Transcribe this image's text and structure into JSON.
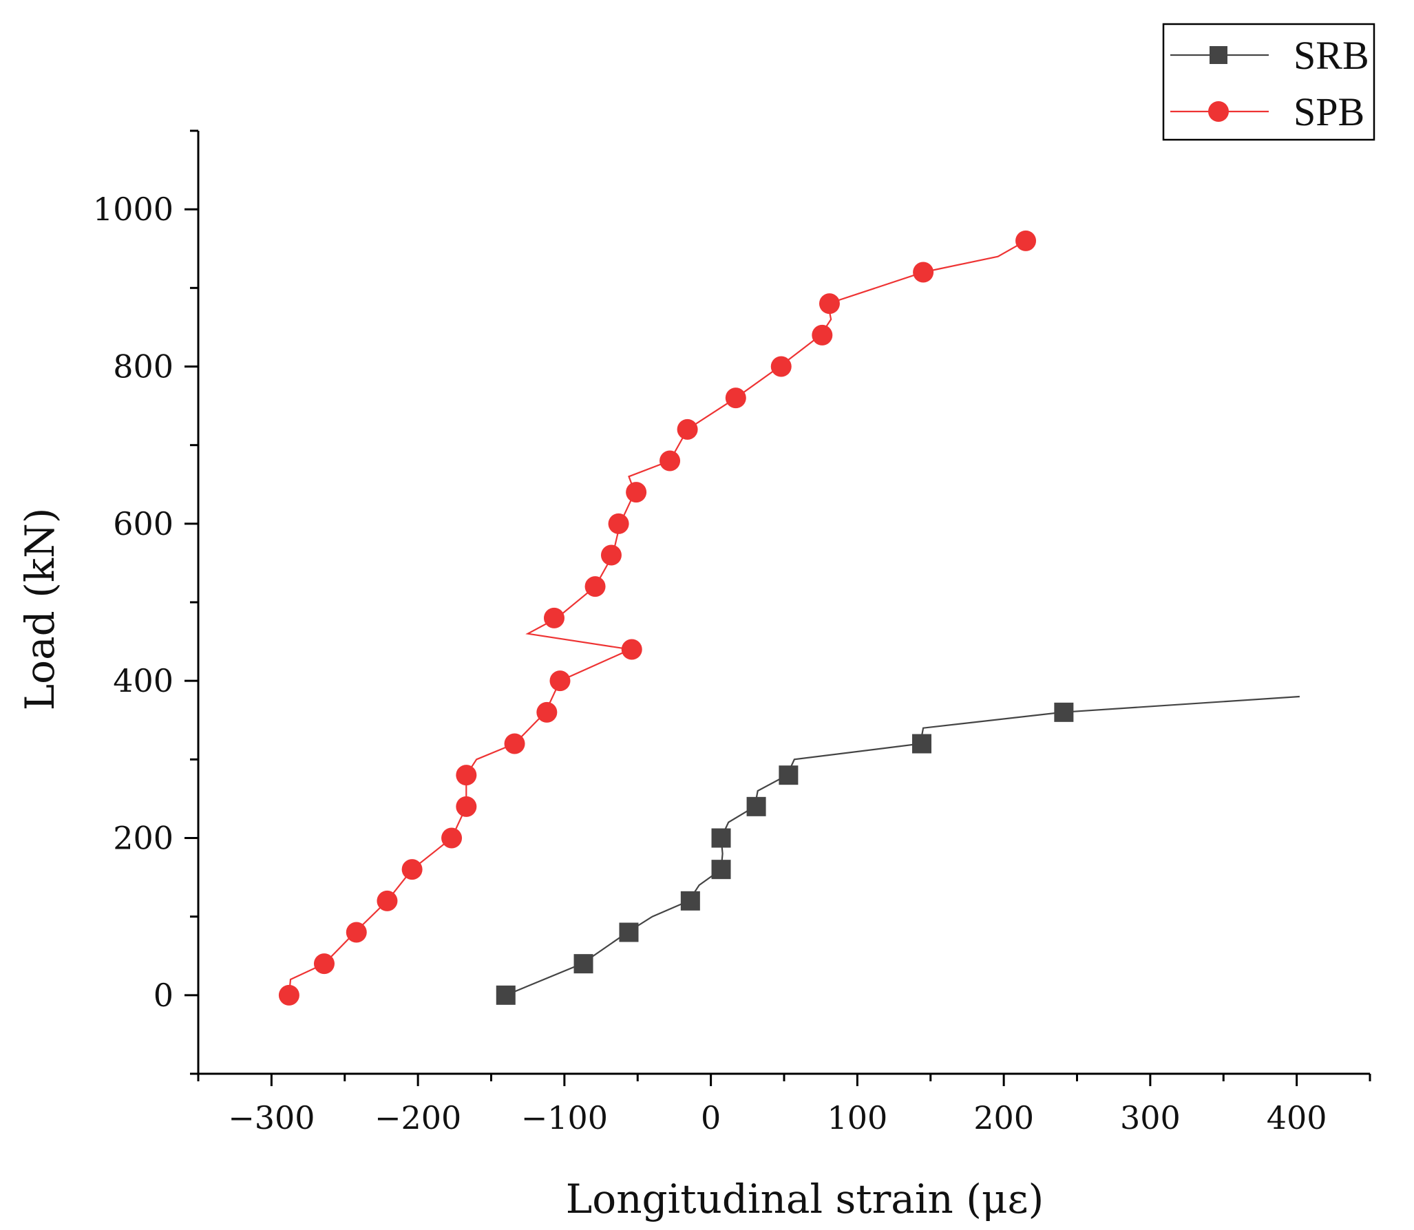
{
  "chart_data": {
    "type": "line",
    "title": "",
    "xlabel": "Longitudinal strain (με)",
    "ylabel": "Load (kN)",
    "xlim": [
      -350,
      450
    ],
    "ylim": [
      -100,
      1100
    ],
    "xticks": [
      -300,
      -200,
      -100,
      0,
      100,
      200,
      300,
      400
    ],
    "xtick_labels": [
      "−300",
      "−200",
      "−100",
      "0",
      "100",
      "200",
      "300",
      "400"
    ],
    "yticks": [
      0,
      200,
      400,
      600,
      800,
      1000
    ],
    "ytick_labels": [
      "0",
      "200",
      "400",
      "600",
      "800",
      "1000"
    ],
    "legend_position": "top-right",
    "grid": false,
    "series": [
      {
        "name": "SRB",
        "color": "#444444",
        "marker": "square",
        "line": [
          [
            -140,
            0
          ],
          [
            -88,
            40
          ],
          [
            -57,
            80
          ],
          [
            -40,
            100
          ],
          [
            -15,
            120
          ],
          [
            -8,
            140
          ],
          [
            7,
            160
          ],
          [
            8,
            180
          ],
          [
            7,
            200
          ],
          [
            12,
            220
          ],
          [
            30,
            240
          ],
          [
            32,
            260
          ],
          [
            52,
            280
          ],
          [
            57,
            300
          ],
          [
            143,
            320
          ],
          [
            145,
            340
          ],
          [
            240,
            360
          ],
          [
            402,
            380
          ]
        ],
        "markers": [
          [
            -140,
            0
          ],
          [
            -87,
            40
          ],
          [
            -56,
            80
          ],
          [
            -14,
            120
          ],
          [
            7,
            160
          ],
          [
            7,
            200
          ],
          [
            31,
            240
          ],
          [
            53,
            280
          ],
          [
            144,
            320
          ],
          [
            241,
            360
          ]
        ]
      },
      {
        "name": "SPB",
        "color": "#ee3333",
        "marker": "circle",
        "line": [
          [
            -288,
            0
          ],
          [
            -287,
            20
          ],
          [
            -264,
            40
          ],
          [
            -243,
            80
          ],
          [
            -221,
            120
          ],
          [
            -204,
            160
          ],
          [
            -177,
            200
          ],
          [
            -167,
            240
          ],
          [
            -167,
            280
          ],
          [
            -160,
            300
          ],
          [
            -134,
            320
          ],
          [
            -113,
            360
          ],
          [
            -103,
            400
          ],
          [
            -55,
            440
          ],
          [
            -125,
            460
          ],
          [
            -105,
            480
          ],
          [
            -79,
            520
          ],
          [
            -67,
            560
          ],
          [
            -62,
            600
          ],
          [
            -52,
            640
          ],
          [
            -56,
            660
          ],
          [
            -28,
            680
          ],
          [
            -16,
            720
          ],
          [
            17,
            760
          ],
          [
            47,
            800
          ],
          [
            75,
            840
          ],
          [
            82,
            860
          ],
          [
            80,
            880
          ],
          [
            145,
            920
          ],
          [
            196,
            940
          ],
          [
            215,
            960
          ]
        ],
        "markers": [
          [
            -288,
            0
          ],
          [
            -264,
            40
          ],
          [
            -242,
            80
          ],
          [
            -221,
            120
          ],
          [
            -204,
            160
          ],
          [
            -177,
            200
          ],
          [
            -167,
            240
          ],
          [
            -167,
            280
          ],
          [
            -134,
            320
          ],
          [
            -112,
            360
          ],
          [
            -103,
            400
          ],
          [
            -54,
            440
          ],
          [
            -107,
            480
          ],
          [
            -79,
            520
          ],
          [
            -68,
            560
          ],
          [
            -63,
            600
          ],
          [
            -51,
            640
          ],
          [
            -28,
            680
          ],
          [
            -16,
            720
          ],
          [
            17,
            760
          ],
          [
            48,
            800
          ],
          [
            76,
            840
          ],
          [
            81,
            880
          ],
          [
            145,
            920
          ],
          [
            215,
            960
          ]
        ]
      }
    ]
  }
}
